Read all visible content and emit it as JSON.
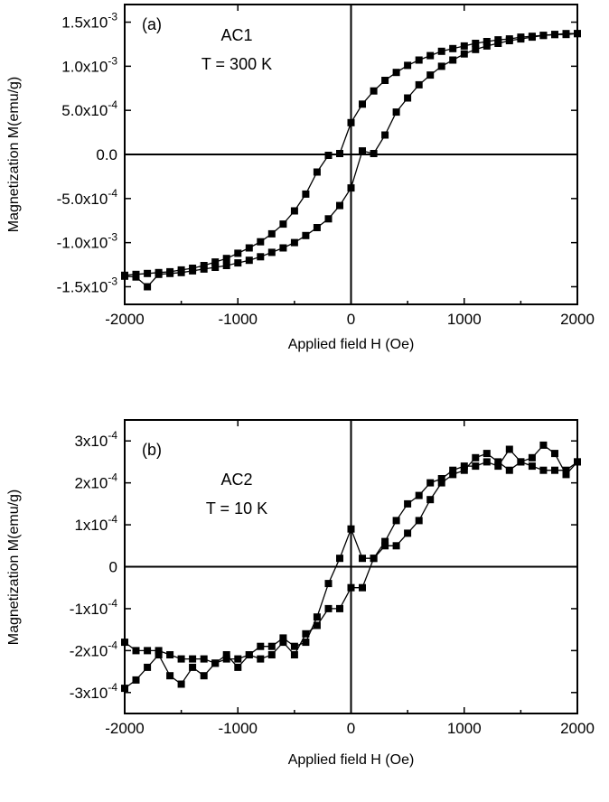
{
  "chart_data": [
    {
      "type": "line",
      "panel": "(a)",
      "annotation": [
        "AC1",
        "T = 300 K"
      ],
      "xlabel": "Applied field H (Oe)",
      "ylabel": "Magnetization M(emu/g)",
      "xlim": [
        -2000,
        2000
      ],
      "ylim": [
        -0.0017,
        0.0017
      ],
      "xticks": [
        {
          "value": -2000,
          "label": "-2000"
        },
        {
          "value": -1000,
          "label": "-1000"
        },
        {
          "value": 0,
          "label": "0"
        },
        {
          "value": 1000,
          "label": "1000"
        },
        {
          "value": 2000,
          "label": "2000"
        }
      ],
      "yticks": [
        {
          "value": 0.0015,
          "mant": "1.5x10",
          "exp": "-3"
        },
        {
          "value": 0.001,
          "mant": "1.0x10",
          "exp": "-3"
        },
        {
          "value": 0.0005,
          "mant": "5.0x10",
          "exp": "-4"
        },
        {
          "value": 0,
          "mant": "0.0",
          "exp": ""
        },
        {
          "value": -0.0005,
          "mant": "-5.0x10",
          "exp": "-4"
        },
        {
          "value": -0.001,
          "mant": "-1.0x10",
          "exp": "-3"
        },
        {
          "value": -0.0015,
          "mant": "-1.5x10",
          "exp": "-3"
        }
      ],
      "series": [
        {
          "x": [
            -2000,
            -1900,
            -1800,
            -1700,
            -1600,
            -1500,
            -1400,
            -1300,
            -1200,
            -1100,
            -1000,
            -900,
            -800,
            -700,
            -600,
            -500,
            -400,
            -300,
            -200,
            -100,
            0,
            100,
            200,
            300,
            400,
            500,
            600,
            700,
            800,
            900,
            1000,
            1100,
            1200,
            1300,
            1400,
            1500,
            1600,
            1700,
            1800,
            1900,
            2000
          ],
          "y": [
            -0.00137,
            -0.00136,
            -0.00135,
            -0.00134,
            -0.00133,
            -0.00131,
            -0.00129,
            -0.00126,
            -0.00122,
            -0.00118,
            -0.00112,
            -0.00106,
            -0.00099,
            -0.0009,
            -0.00079,
            -0.00064,
            -0.00045,
            -0.0002,
            -1e-05,
            1e-05,
            0.00036,
            0.00057,
            0.00072,
            0.00084,
            0.00093,
            0.00101,
            0.00107,
            0.00112,
            0.00117,
            0.0012,
            0.00123,
            0.00126,
            0.00128,
            0.0013,
            0.00131,
            0.00133,
            0.00134,
            0.00135,
            0.00136,
            0.00136,
            0.00137
          ]
        },
        {
          "x": [
            2000,
            1900,
            1800,
            1700,
            1600,
            1500,
            1400,
            1300,
            1200,
            1100,
            1000,
            900,
            800,
            700,
            600,
            500,
            400,
            300,
            200,
            100,
            0,
            -100,
            -200,
            -300,
            -400,
            -500,
            -600,
            -700,
            -800,
            -900,
            -1000,
            -1100,
            -1200,
            -1300,
            -1400,
            -1500,
            -1600,
            -1700,
            -1800,
            -1900,
            -2000
          ],
          "y": [
            0.00137,
            0.00137,
            0.00136,
            0.00135,
            0.00133,
            0.00131,
            0.00129,
            0.00126,
            0.00123,
            0.00119,
            0.00114,
            0.00107,
            0.001,
            0.0009,
            0.00079,
            0.00064,
            0.00048,
            0.00022,
            1e-05,
            4e-05,
            -0.00038,
            -0.00058,
            -0.00073,
            -0.00083,
            -0.00092,
            -0.001,
            -0.00106,
            -0.00111,
            -0.00116,
            -0.0012,
            -0.00123,
            -0.00126,
            -0.00128,
            -0.0013,
            -0.00132,
            -0.00134,
            -0.00135,
            -0.00136,
            -0.0015,
            -0.00139,
            -0.00138
          ]
        }
      ]
    },
    {
      "type": "line",
      "panel": "(b)",
      "annotation": [
        "AC2",
        "T = 10 K"
      ],
      "xlabel": "Applied field H (Oe)",
      "ylabel": "Magnetization M(emu/g)",
      "xlim": [
        -2000,
        2000
      ],
      "ylim": [
        -0.00035,
        0.00035
      ],
      "xticks": [
        {
          "value": -2000,
          "label": "-2000"
        },
        {
          "value": -1000,
          "label": "-1000"
        },
        {
          "value": 0,
          "label": "0"
        },
        {
          "value": 1000,
          "label": "1000"
        },
        {
          "value": 2000,
          "label": "2000"
        }
      ],
      "yticks": [
        {
          "value": 0.0003,
          "mant": "3x10",
          "exp": "-4"
        },
        {
          "value": 0.0002,
          "mant": "2x10",
          "exp": "-4"
        },
        {
          "value": 0.0001,
          "mant": "1x10",
          "exp": "-4"
        },
        {
          "value": 0,
          "mant": "0",
          "exp": ""
        },
        {
          "value": -0.0001,
          "mant": "-1x10",
          "exp": "-4"
        },
        {
          "value": -0.0002,
          "mant": "-2x10",
          "exp": "-4"
        },
        {
          "value": -0.0003,
          "mant": "-3x10",
          "exp": "-4"
        }
      ],
      "series": [
        {
          "x": [
            -2000,
            -1900,
            -1800,
            -1700,
            -1600,
            -1500,
            -1400,
            -1300,
            -1200,
            -1100,
            -1000,
            -900,
            -800,
            -700,
            -600,
            -500,
            -400,
            -300,
            -200,
            -100,
            0,
            100,
            200,
            300,
            400,
            500,
            600,
            700,
            800,
            900,
            1000,
            1100,
            1200,
            1300,
            1400,
            1500,
            1600,
            1700,
            1800,
            1900,
            2000
          ],
          "y": [
            -0.00029,
            -0.00027,
            -0.00024,
            -0.00021,
            -0.00026,
            -0.00028,
            -0.00024,
            -0.00026,
            -0.00023,
            -0.00022,
            -0.00022,
            -0.00021,
            -0.00022,
            -0.00021,
            -0.00018,
            -0.00021,
            -0.00016,
            -0.00014,
            -0.0001,
            -0.0001,
            -5e-05,
            -5e-05,
            2e-05,
            6e-05,
            0.00011,
            0.00015,
            0.00017,
            0.0002,
            0.00021,
            0.00023,
            0.00024,
            0.00024,
            0.00025,
            0.00024,
            0.00028,
            0.00025,
            0.00026,
            0.00029,
            0.00027,
            0.00022,
            0.00025
          ]
        },
        {
          "x": [
            2000,
            1900,
            1800,
            1700,
            1600,
            1500,
            1400,
            1300,
            1200,
            1100,
            1000,
            900,
            800,
            700,
            600,
            500,
            400,
            300,
            200,
            100,
            0,
            -100,
            -200,
            -300,
            -400,
            -500,
            -600,
            -700,
            -800,
            -900,
            -1000,
            -1100,
            -1200,
            -1300,
            -1400,
            -1500,
            -1600,
            -1700,
            -1800,
            -1900,
            -2000
          ],
          "y": [
            0.00025,
            0.00023,
            0.00023,
            0.00023,
            0.00024,
            0.00025,
            0.00023,
            0.00025,
            0.00027,
            0.00026,
            0.00023,
            0.00022,
            0.0002,
            0.00016,
            0.00011,
            8e-05,
            5e-05,
            5e-05,
            2e-05,
            2e-05,
            9e-05,
            2e-05,
            -4e-05,
            -0.00012,
            -0.00018,
            -0.00019,
            -0.00017,
            -0.00019,
            -0.00019,
            -0.00021,
            -0.00024,
            -0.00021,
            -0.00023,
            -0.00022,
            -0.00022,
            -0.00022,
            -0.00021,
            -0.0002,
            -0.0002,
            -0.0002,
            -0.00018
          ]
        }
      ]
    }
  ]
}
